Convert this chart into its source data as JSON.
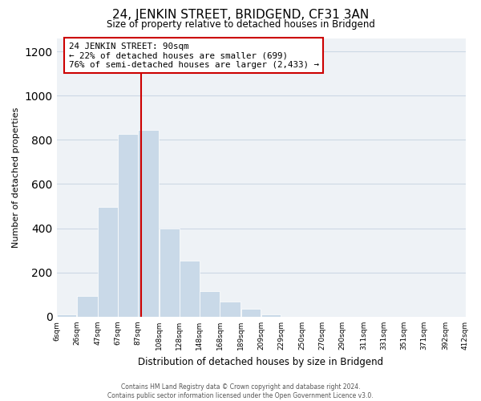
{
  "title": "24, JENKIN STREET, BRIDGEND, CF31 3AN",
  "subtitle": "Size of property relative to detached houses in Bridgend",
  "xlabel": "Distribution of detached houses by size in Bridgend",
  "ylabel": "Number of detached properties",
  "bar_left_edges": [
    6,
    26,
    47,
    67,
    87,
    108,
    128,
    148,
    168,
    189,
    209,
    229,
    250,
    270,
    290,
    311,
    331,
    351,
    371,
    392
  ],
  "bar_heights": [
    10,
    95,
    495,
    825,
    845,
    400,
    255,
    115,
    68,
    35,
    12,
    0,
    0,
    0,
    0,
    0,
    0,
    0,
    0,
    0
  ],
  "bar_widths": [
    20,
    21,
    20,
    20,
    21,
    20,
    20,
    20,
    21,
    20,
    20,
    21,
    20,
    20,
    21,
    20,
    20,
    20,
    21,
    20
  ],
  "bar_color": "#c9d9e8",
  "bar_edge_color": "#ffffff",
  "grid_color": "#ccd8e4",
  "bg_color": "#eef2f6",
  "vline_x": 90,
  "vline_color": "#cc0000",
  "annotation_text_line1": "24 JENKIN STREET: 90sqm",
  "annotation_text_line2": "← 22% of detached houses are smaller (699)",
  "annotation_text_line3": "76% of semi-detached houses are larger (2,433) →",
  "xlim": [
    6,
    412
  ],
  "ylim": [
    0,
    1260
  ],
  "tick_labels": [
    "6sqm",
    "26sqm",
    "47sqm",
    "67sqm",
    "87sqm",
    "108sqm",
    "128sqm",
    "148sqm",
    "168sqm",
    "189sqm",
    "209sqm",
    "229sqm",
    "250sqm",
    "270sqm",
    "290sqm",
    "311sqm",
    "331sqm",
    "351sqm",
    "371sqm",
    "392sqm",
    "412sqm"
  ],
  "tick_positions": [
    6,
    26,
    47,
    67,
    87,
    108,
    128,
    148,
    168,
    189,
    209,
    229,
    250,
    270,
    290,
    311,
    331,
    351,
    371,
    392,
    412
  ],
  "yticks": [
    0,
    200,
    400,
    600,
    800,
    1000,
    1200
  ],
  "footer_line1": "Contains HM Land Registry data © Crown copyright and database right 2024.",
  "footer_line2": "Contains public sector information licensed under the Open Government Licence v3.0."
}
